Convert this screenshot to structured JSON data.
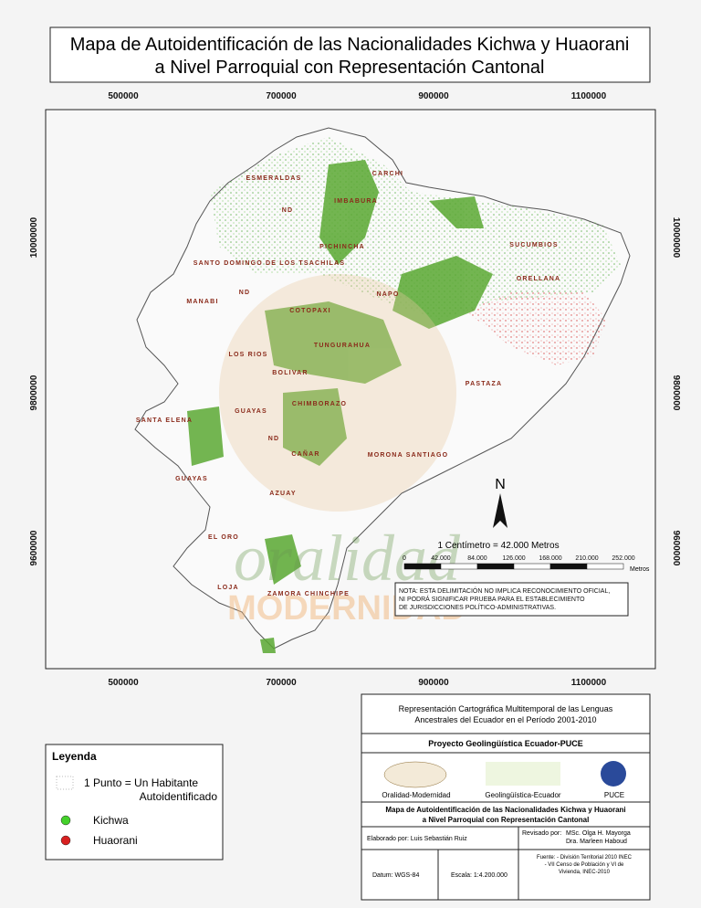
{
  "title": {
    "line1": "Mapa de Autoidentificación de las Nacionalidades Kichwa y Huaorani",
    "line2": "a Nivel Parroquial con Representación Cantonal"
  },
  "map": {
    "x_ticks": [
      500000,
      700000,
      900000,
      1100000
    ],
    "y_ticks": [
      10000000,
      9800000,
      9600000
    ],
    "provinces": [
      "ESMERALDAS",
      "CARCHI",
      "IMBABURA",
      "ND",
      "PICHINCHA",
      "SUCUMBIOS",
      "SANTO DOMINGO DE LOS TSACHILAS",
      "ND",
      "MANABI",
      "NAPO",
      "ORELLANA",
      "COTOPAXI",
      "TUNGURAHUA",
      "LOS RIOS",
      "BOLIVAR",
      "PASTAZA",
      "CHIMBORAZO",
      "GUAYAS",
      "SANTA ELENA",
      "ND",
      "CAÑAR",
      "MORONA SANTIAGO",
      "GUAYAS",
      "AZUAY",
      "EL ORO",
      "LOJA",
      "ZAMORA CHINCHIPE"
    ],
    "north": "N",
    "scale": {
      "title": "1 Centímetro = 42.000 Metros",
      "labels": [
        "0",
        "42.000",
        "84.000",
        "126.000",
        "168.000",
        "210.000",
        "252.000"
      ],
      "unit": "Metros"
    },
    "note": [
      "NOTA: ESTA DELIMITACIÓN NO IMPLICA RECONOCIMIENTO OFICIAL,",
      "NI PODRÁ SIGNIFICAR PRUEBA PARA EL ESTABLECIMIENTO",
      "DE JURISDICCIONES POLÍTICO-ADMINISTRATIVAS."
    ],
    "watermark": [
      "oralidad",
      "MODERNIDAD"
    ]
  },
  "legend": {
    "title": "Leyenda",
    "dot_line1": "1 Punto = Un Habitante",
    "dot_line2": "Autoidentificado",
    "items": [
      "Kichwa",
      "Huaorani"
    ]
  },
  "title_block": {
    "heading": [
      "Representación Cartográfica Multitemporal de las Lenguas",
      "Ancestrales del Ecuador en el Período 2001-2010"
    ],
    "project": "Proyecto  Geolingüística Ecuador-PUCE",
    "logos": [
      "Oralidad-Modernidad",
      "Geolingüística-Ecuador",
      "PUCE"
    ],
    "map_title": [
      "Mapa de Autoidentificación de las Nacionalidades Kichwa y Huaorani",
      "a Nivel Parroquial con Representación Cantonal"
    ],
    "made_by": "Elaborado por:  Luis Sebastián Ruiz",
    "reviewed_label": "Revisado por:",
    "reviewers": [
      "MSc. Olga H. Mayorga",
      "Dra. Marleen Haboud"
    ],
    "datum": "Datum: WGS-84",
    "scale": "Escala: 1:4.200.000",
    "source": [
      "Fuente: - División Territorial 2010 INEC",
      "- VII Censo de Población y VI de",
      "Vivienda, INEC-2010"
    ]
  }
}
